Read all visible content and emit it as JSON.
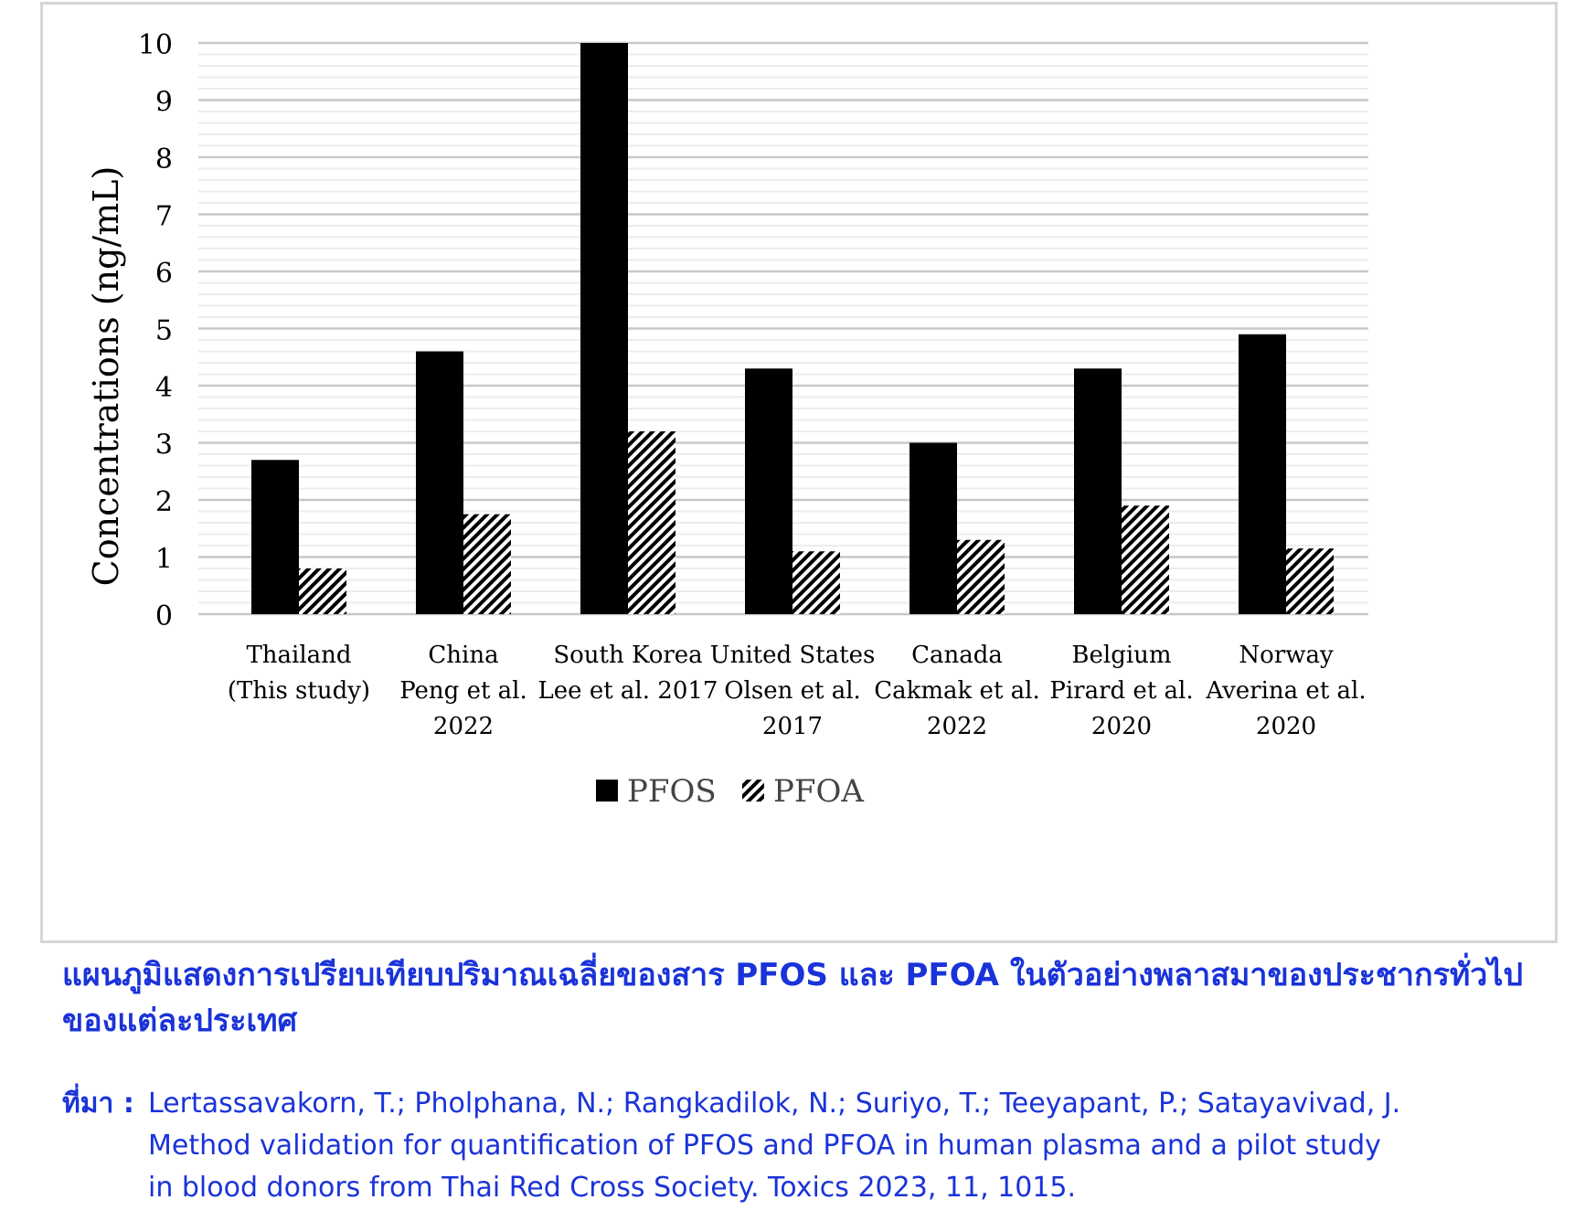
{
  "chart_data": {
    "type": "bar",
    "title": "",
    "xlabel": "",
    "ylabel": "Concentrations (ng/mL)",
    "ylim": [
      0,
      10
    ],
    "y_ticks": [
      "0",
      "1",
      "2",
      "3",
      "4",
      "5",
      "6",
      "7",
      "8",
      "9",
      "10"
    ],
    "grid": true,
    "legend_position": "bottom",
    "categories": [
      [
        "Thailand",
        "(This study)"
      ],
      [
        "China",
        "Peng et al.",
        "2022"
      ],
      [
        "South Korea",
        "Lee et al. 2017"
      ],
      [
        "United States",
        "Olsen et al.",
        "2017"
      ],
      [
        "Canada",
        "Cakmak et al.",
        "2022"
      ],
      [
        "Belgium",
        "Pirard et al.",
        "2020"
      ],
      [
        "Norway",
        "Averina et al.",
        "2020"
      ]
    ],
    "series": [
      {
        "name": "PFOS",
        "color": "#000000",
        "pattern": "solid",
        "values": [
          2.7,
          4.6,
          10.0,
          4.3,
          3.0,
          4.3,
          4.9
        ]
      },
      {
        "name": "PFOA",
        "color": "#000000",
        "pattern": "diagonal-hatch",
        "values": [
          0.8,
          1.75,
          3.2,
          1.1,
          1.3,
          1.9,
          1.15
        ]
      }
    ]
  },
  "caption": {
    "title": "แผนภูมิแสดงการเปรียบเทียบปริมาณเฉลี่ยของสาร PFOS และ PFOA ในตัวอย่างพลาสมาของประชากรทั่วไปของแต่ละประเทศ",
    "source_label": "ที่มา :",
    "source_lines": [
      "Lertassavakorn, T.; Pholphana, N.; Rangkadilok, N.; Suriyo, T.; Teeyapant, P.; Satayavivad, J.",
      "Method validation for quantification of PFOS and PFOA in human plasma and a pilot study",
      "in blood donors from Thai Red Cross Society. Toxics 2023, 11, 1015."
    ],
    "color": "#1a33d9"
  }
}
